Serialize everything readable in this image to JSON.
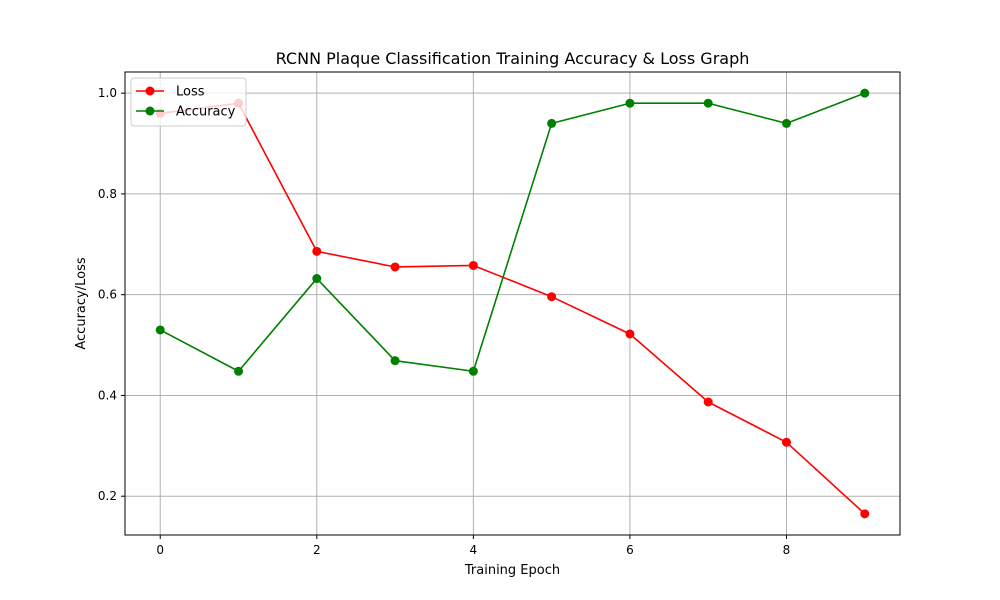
{
  "chart_data": {
    "type": "line",
    "title": "RCNN Plaque Classification Training Accuracy & Loss Graph",
    "xlabel": "Training Epoch",
    "ylabel": "Accuracy/Loss",
    "x": [
      0,
      1,
      2,
      3,
      4,
      5,
      6,
      7,
      8,
      9
    ],
    "xticks": [
      0,
      2,
      4,
      6,
      8
    ],
    "xtick_labels": [
      "0",
      "2",
      "4",
      "6",
      "8"
    ],
    "yticks": [
      0.2,
      0.4,
      0.6,
      0.8,
      1.0
    ],
    "ytick_labels": [
      "0.2",
      "0.4",
      "0.6",
      "0.8",
      "1.0"
    ],
    "xlim": [
      -0.45,
      9.45
    ],
    "ylim": [
      0.123,
      1.042
    ],
    "grid": true,
    "legend_position": "upper left",
    "series": [
      {
        "name": "Loss",
        "color": "#ff0000",
        "marker": "circle",
        "values": [
          0.96,
          0.98,
          0.686,
          0.655,
          0.658,
          0.596,
          0.522,
          0.387,
          0.307,
          0.165
        ]
      },
      {
        "name": "Accuracy",
        "color": "#008000",
        "marker": "circle",
        "values": [
          0.53,
          0.448,
          0.632,
          0.469,
          0.448,
          0.94,
          0.98,
          0.98,
          0.94,
          1.0
        ]
      }
    ]
  }
}
